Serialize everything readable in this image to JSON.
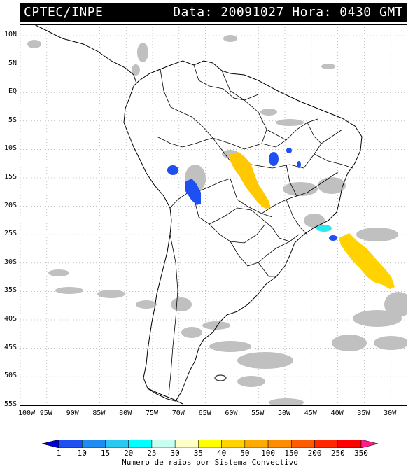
{
  "header": {
    "left_text": "CPTEC/INPE",
    "right_text": "Data: 20091027  Hora: 0430 GMT"
  },
  "axes": {
    "lat_ticks": [
      "10N",
      "5N",
      "EQ",
      "5S",
      "10S",
      "15S",
      "20S",
      "25S",
      "30S",
      "35S",
      "40S",
      "45S",
      "50S",
      "55S"
    ],
    "lon_ticks": [
      "100W",
      "95W",
      "90W",
      "85W",
      "80W",
      "75W",
      "70W",
      "65W",
      "60W",
      "55W",
      "50W",
      "45W",
      "40W",
      "35W",
      "30W"
    ]
  },
  "colorbar": {
    "labels": [
      "1",
      "10",
      "15",
      "20",
      "25",
      "30",
      "35",
      "40",
      "50",
      "100",
      "150",
      "200",
      "250",
      "350"
    ],
    "colors": [
      "#0000cc",
      "#1e4ff0",
      "#1e8cf0",
      "#28c8f0",
      "#00ffff",
      "#c8fff0",
      "#ffffc8",
      "#ffff00",
      "#ffd200",
      "#ffaa00",
      "#ff8c00",
      "#ff5a00",
      "#ff2800",
      "#ff0000",
      "#ff1e8c"
    ],
    "title": "Numero de raios por Sistema Convectivo"
  },
  "map": {
    "land_color": "#ffffff",
    "cloud_color": "#c0c0c0",
    "systems": [
      {
        "name": "yellow-system-central",
        "color": "#ffc800"
      },
      {
        "name": "yellow-system-atlantic",
        "color": "#ffd200"
      },
      {
        "name": "blue-system-bolivia",
        "color": "#1e4ff0"
      },
      {
        "name": "blue-system-goias",
        "color": "#1e4ff0"
      },
      {
        "name": "cyan-system-sao-paulo",
        "color": "#28e8f0"
      }
    ]
  }
}
